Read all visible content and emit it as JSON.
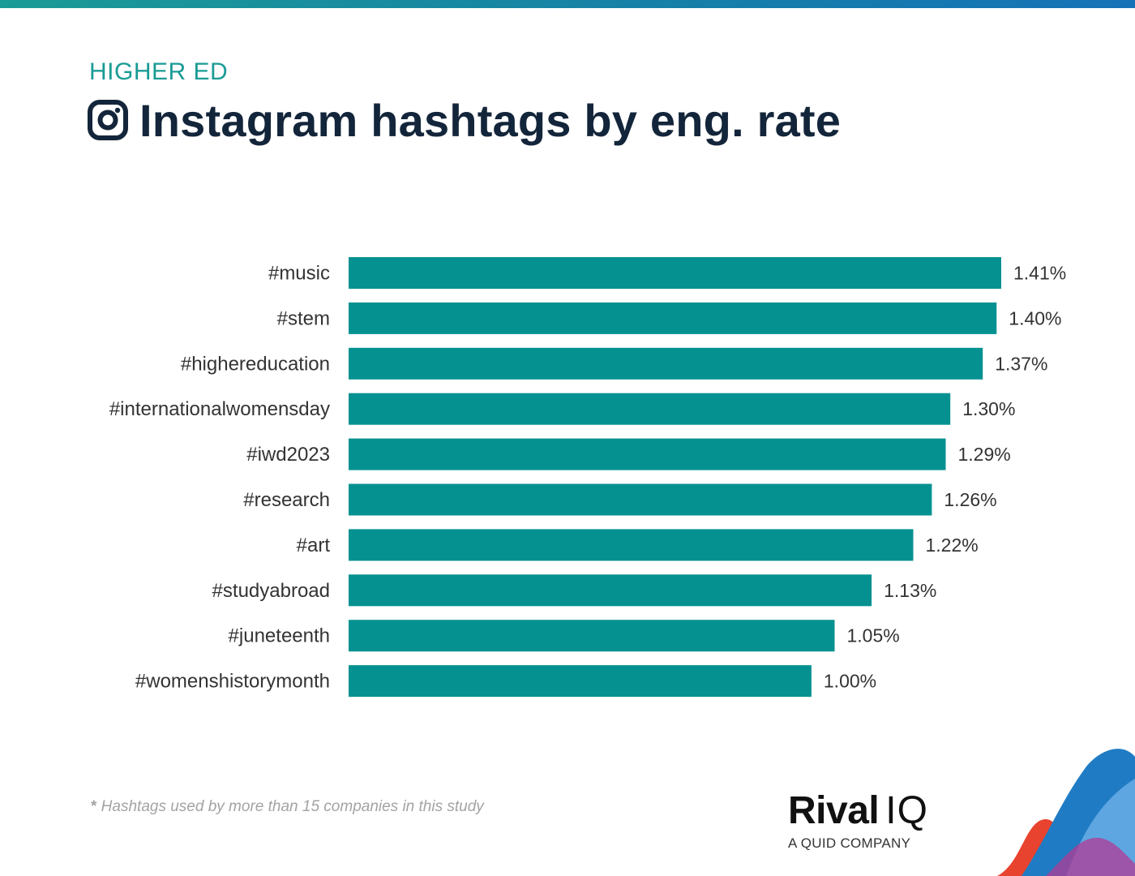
{
  "header": {
    "eyebrow": "HIGHER ED",
    "title": "Instagram hashtags by eng. rate",
    "icon": "instagram-icon"
  },
  "footnote": {
    "star": "*",
    "text": " Hashtags used by more than 15 companies in this study"
  },
  "brand": {
    "name_bold": "Rival",
    "name_light": "IQ",
    "tagline": "A QUID COMPANY"
  },
  "colors": {
    "bar": "#069191",
    "title": "#13253a",
    "eyebrow": "#1a9b95",
    "label": "#333333"
  },
  "chart_data": {
    "type": "bar",
    "orientation": "horizontal",
    "categories": [
      "#music",
      "#stem",
      "#highereducation",
      "#internationalwomensday",
      "#iwd2023",
      "#research",
      "#art",
      "#studyabroad",
      "#juneteenth",
      "#womenshistorymonth"
    ],
    "values": [
      1.41,
      1.4,
      1.37,
      1.3,
      1.29,
      1.26,
      1.22,
      1.13,
      1.05,
      1.0
    ],
    "value_labels": [
      "1.41%",
      "1.40%",
      "1.37%",
      "1.30%",
      "1.29%",
      "1.26%",
      "1.22%",
      "1.13%",
      "1.05%",
      "1.00%"
    ],
    "xlim": [
      0,
      1.41
    ],
    "grid": false,
    "legend": "none"
  }
}
